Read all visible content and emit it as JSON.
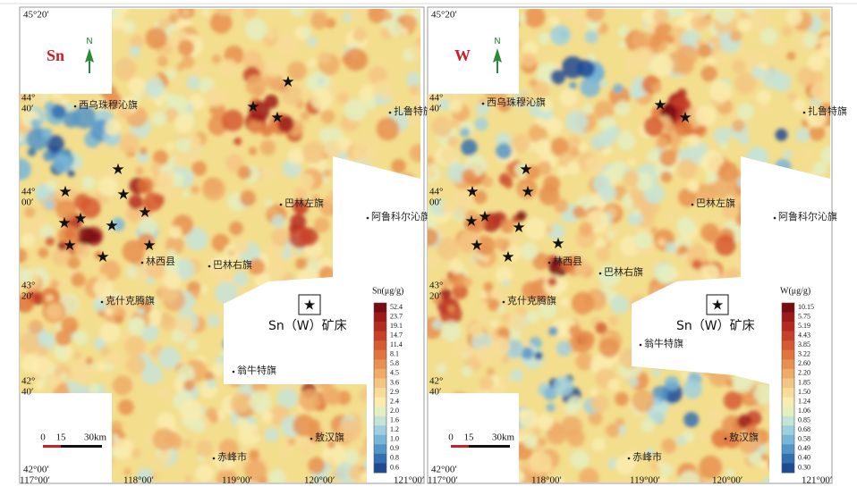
{
  "panels": [
    {
      "element": "Sn",
      "north": "N",
      "lat_top": "45°20′",
      "lat_labels": [
        {
          "deg": "44°",
          "min": "40′"
        },
        {
          "deg": "44°",
          "min": "00′"
        },
        {
          "deg": "43°",
          "min": "20′"
        },
        {
          "deg": "42°",
          "min": "40′"
        }
      ],
      "lat_bottom": "42°00′",
      "lon_labels": [
        "117°00′",
        "118°00′",
        "119°00′",
        "120°00′",
        "121°00′"
      ],
      "places": [
        "西乌珠穆沁旗",
        "扎鲁特旗",
        "巴林左旗",
        "阿鲁科尔沁旗",
        "林西县",
        "巴林右旗",
        "克什克腾旗",
        "翁牛特旗",
        "赤峰市",
        "敖汉旗"
      ],
      "scale": {
        "ticks": [
          "0",
          "15",
          "30km"
        ]
      },
      "deposit_symbol": "★",
      "deposit_label": "Sn（W）矿床",
      "legend": {
        "title": "Sn(μg/g)",
        "labels": [
          "52.4",
          "23.7",
          "19.1",
          "14.7",
          "11.4",
          "8.1",
          "5.8",
          "4.5",
          "3.6",
          "2.9",
          "2.4",
          "2.0",
          "1.6",
          "1.2",
          "1.0",
          "0.9",
          "0.8",
          "0.6"
        ]
      }
    },
    {
      "element": "W",
      "north": "N",
      "lat_top": "45°20′",
      "lat_labels": [
        {
          "deg": "44°",
          "min": "40′"
        },
        {
          "deg": "44°",
          "min": "00′"
        },
        {
          "deg": "43°",
          "min": "20′"
        },
        {
          "deg": "42°",
          "min": "40′"
        }
      ],
      "lat_bottom": "42°00′",
      "lon_labels": [
        "117°00′",
        "118°00′",
        "119°00′",
        "120°00′",
        "121°00′"
      ],
      "places": [
        "西乌珠穆沁旗",
        "扎鲁特旗",
        "巴林左旗",
        "阿鲁科尔沁旗",
        "林西县",
        "巴林右旗",
        "克什克腾旗",
        "翁牛特旗",
        "赤峰市",
        "敖汉旗"
      ],
      "scale": {
        "ticks": [
          "0",
          "15",
          "30km"
        ]
      },
      "deposit_symbol": "★",
      "deposit_label": "Sn（W）矿床",
      "legend": {
        "title": "W(μg/g)",
        "labels": [
          "10.15",
          "5.75",
          "5.19",
          "4.43",
          "3.85",
          "3.22",
          "2.60",
          "2.20",
          "1.85",
          "1.50",
          "1.24",
          "1.06",
          "0.85",
          "0.68",
          "0.58",
          "0.49",
          "0.40",
          "0.30"
        ]
      }
    }
  ]
}
